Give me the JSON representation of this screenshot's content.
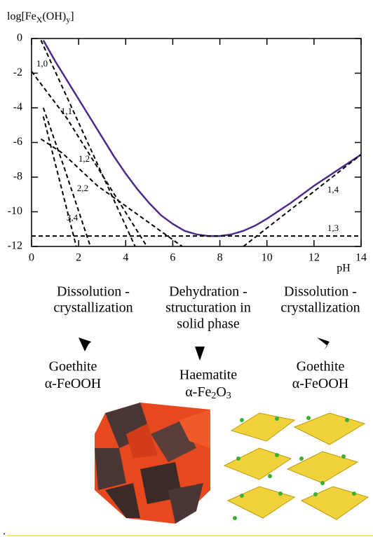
{
  "chart_data": {
    "type": "line",
    "y_label": [
      "log[Fe",
      "X",
      "(OH)",
      "y",
      "]"
    ],
    "x_label": "pH",
    "xlim": [
      0,
      14
    ],
    "xticks": [
      0,
      2,
      4,
      6,
      8,
      10,
      12,
      14
    ],
    "ylim": [
      -12,
      0
    ],
    "yticks": [
      0,
      -2,
      -4,
      -6,
      -8,
      -10,
      -12
    ],
    "series": [
      {
        "color": "#4b2a8a",
        "style": "solid",
        "x": [
          0.5,
          1,
          1.5,
          2,
          2.5,
          3,
          3.5,
          4,
          4.5,
          5,
          5.5,
          6,
          6.5,
          7,
          7.5,
          8,
          8.5,
          9,
          9.5,
          10,
          11,
          12,
          13,
          14
        ],
        "values": [
          -0.1,
          -1.3,
          -2.4,
          -3.5,
          -4.6,
          -5.7,
          -6.8,
          -7.8,
          -8.7,
          -9.5,
          -10.2,
          -10.7,
          -11.1,
          -11.3,
          -11.4,
          -11.4,
          -11.3,
          -11.1,
          -10.8,
          -10.4,
          -9.5,
          -8.5,
          -7.6,
          -6.7
        ]
      },
      {
        "name": "1,0",
        "color": "#000000",
        "style": "dashed",
        "x": [
          0.4,
          4.4
        ],
        "values": [
          -0.1,
          -12
        ]
      },
      {
        "name": "1,1",
        "color": "#000000",
        "style": "dashed",
        "x": [
          0,
          1.5,
          4.9
        ],
        "values": [
          -1.9,
          -4.6,
          -12
        ]
      },
      {
        "name": "1,2",
        "color": "#000000",
        "style": "dashed",
        "x": [
          0.4,
          1.3,
          2.8,
          6.4
        ],
        "values": [
          -5.8,
          -6.6,
          -8.5,
          -12
        ]
      },
      {
        "name": "2,2",
        "color": "#000000",
        "style": "dashed",
        "x": [
          0.5,
          1.4,
          2.5
        ],
        "values": [
          -4.0,
          -7.5,
          -12
        ]
      },
      {
        "name": "3,4",
        "color": "#000000",
        "style": "dashed",
        "x": [
          0.5,
          1.9
        ],
        "values": [
          -4.5,
          -12
        ]
      },
      {
        "name": "1,4",
        "color": "#000000",
        "style": "dashed",
        "x": [
          9,
          14
        ],
        "values": [
          -12,
          -6.7
        ]
      },
      {
        "name": "1,3",
        "color": "#000000",
        "style": "dashed",
        "x": [
          0,
          14
        ],
        "values": [
          -11.4,
          -11.4
        ]
      }
    ]
  },
  "process": [
    {
      "step": [
        "Dissolution -",
        "crystallization"
      ],
      "product": [
        "Goethite"
      ],
      "formula": [
        "α-FeOOH"
      ]
    },
    {
      "step": [
        "Dehydration -",
        "structuration in",
        "solid phase"
      ],
      "product": [
        "Haematite"
      ],
      "formula": [
        "α-Fe",
        "2",
        "O",
        "3"
      ]
    },
    {
      "step": [
        "Dissolution -",
        "crystallization"
      ],
      "product": [
        "Goethite"
      ],
      "formula": [
        "α-FeOOH"
      ]
    }
  ],
  "footnote": "."
}
